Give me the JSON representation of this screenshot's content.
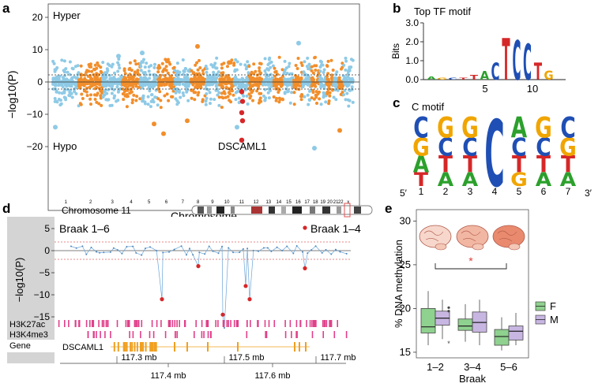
{
  "panel_letters": {
    "a": "a",
    "b": "b",
    "c": "c",
    "d": "d",
    "e": "e"
  },
  "panel_a": {
    "hyper_label": "Hyper",
    "hypo_label": "Hypo",
    "gene_label": "DSCAML1",
    "xlabel": "Chromosome",
    "ylabel": "−log10(P)",
    "yticks": [
      "20",
      "10",
      "0",
      "−10",
      "−20"
    ],
    "chromosomes": [
      "1",
      "2",
      "3",
      "4",
      "5",
      "6",
      "7",
      "8",
      "9",
      "10",
      "11",
      "12",
      "13",
      "14",
      "15",
      "16",
      "17",
      "18",
      "19",
      "20",
      "21",
      "22",
      "x"
    ],
    "colors": {
      "blue": "#8ecae6",
      "orange": "#f28e2b",
      "red": "#d62728"
    }
  },
  "panel_b": {
    "title": "Top TF motif",
    "ylabel": "Bits",
    "yticks": [
      "0.0",
      "1.0",
      "2.0",
      "3.0"
    ],
    "xticks": [
      "5",
      "10"
    ],
    "letters": [
      {
        "c": "A",
        "h": 0.15
      },
      {
        "c": "G",
        "h": 0.1
      },
      {
        "c": "C",
        "h": 0.12
      },
      {
        "c": "T",
        "h": 0.1
      },
      {
        "c": "T",
        "h": 0.25
      },
      {
        "c": "A",
        "h": 0.45
      },
      {
        "c": "C",
        "h": 0.9
      },
      {
        "c": "T",
        "h": 2.2
      },
      {
        "c": "C",
        "h": 2.1
      },
      {
        "c": "C",
        "h": 1.9
      },
      {
        "c": "T",
        "h": 0.9
      },
      {
        "c": "G",
        "h": 0.5
      }
    ]
  },
  "panel_c": {
    "title": "C motif",
    "positions": [
      "1",
      "2",
      "3",
      "4",
      "5",
      "6",
      "7"
    ],
    "end5": "5′",
    "end3": "3′",
    "columns": [
      [
        "C",
        "G",
        "A",
        "T"
      ],
      [
        "G",
        "C",
        "T",
        "A"
      ],
      [
        "G",
        "C",
        "T",
        "A"
      ],
      [
        "C"
      ],
      [
        "A",
        "C",
        "T",
        "G"
      ],
      [
        "G",
        "C",
        "T",
        "A"
      ],
      [
        "C",
        "G",
        "T",
        "A"
      ]
    ]
  },
  "panel_d": {
    "chrom_label": "Chromosome 11",
    "legend_left": "Braak 1–6",
    "legend_right": "Braak 1–4",
    "ylabel": "−log10(P)",
    "yticks": [
      "5",
      "0",
      "−5",
      "−10",
      "−15"
    ],
    "tracks": [
      "H3K27ac",
      "H3K4me3",
      "Gene"
    ],
    "gene_name": "DSCAML1",
    "axis_top": [
      "117.3 mb",
      "117.5 mb",
      "117.7 mb"
    ],
    "axis_bottom": [
      "117.4 mb",
      "117.6 mb"
    ]
  },
  "panel_e": {
    "ylabel": "% DNA methylation",
    "xlabel": "Braak",
    "yticks": [
      "30",
      "25",
      "20",
      "15"
    ],
    "groups": [
      "1–2",
      "3–4",
      "5–6"
    ],
    "legend": [
      {
        "name": "F",
        "color": "#8fd18f"
      },
      {
        "name": "M",
        "color": "#c8b6e2"
      }
    ],
    "significance": "*",
    "chart_data": {
      "type": "box",
      "ylim": [
        14,
        30
      ],
      "series": [
        {
          "name": "F",
          "boxes": [
            {
              "q1": 17.2,
              "median": 17.9,
              "q3": 20.0,
              "lo": 15.8,
              "hi": 22.0
            },
            {
              "q1": 17.5,
              "median": 18.0,
              "q3": 18.8,
              "lo": 16.2,
              "hi": 20.5
            },
            {
              "q1": 15.8,
              "median": 16.8,
              "q3": 17.6,
              "lo": 15.2,
              "hi": 19.0
            }
          ]
        },
        {
          "name": "M",
          "boxes": [
            {
              "q1": 18.1,
              "median": 18.9,
              "q3": 19.7,
              "lo": 16.5,
              "hi": 21.0
            },
            {
              "q1": 17.3,
              "median": 18.4,
              "q3": 19.6,
              "lo": 15.8,
              "hi": 21.0
            },
            {
              "q1": 16.4,
              "median": 17.4,
              "q3": 18.0,
              "lo": 15.8,
              "hi": 19.5
            }
          ]
        }
      ]
    }
  }
}
